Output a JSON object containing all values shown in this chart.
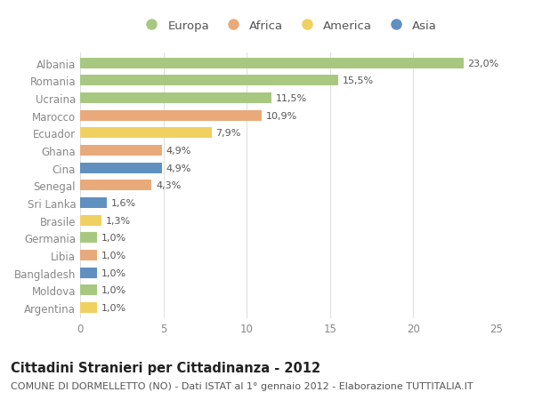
{
  "countries": [
    "Albania",
    "Romania",
    "Ucraina",
    "Marocco",
    "Ecuador",
    "Ghana",
    "Cina",
    "Senegal",
    "Sri Lanka",
    "Brasile",
    "Germania",
    "Libia",
    "Bangladesh",
    "Moldova",
    "Argentina"
  ],
  "values": [
    23.0,
    15.5,
    11.5,
    10.9,
    7.9,
    4.9,
    4.9,
    4.3,
    1.6,
    1.3,
    1.0,
    1.0,
    1.0,
    1.0,
    1.0
  ],
  "labels": [
    "23,0%",
    "15,5%",
    "11,5%",
    "10,9%",
    "7,9%",
    "4,9%",
    "4,9%",
    "4,3%",
    "1,6%",
    "1,3%",
    "1,0%",
    "1,0%",
    "1,0%",
    "1,0%",
    "1,0%"
  ],
  "categories": [
    "Europa",
    "Europa",
    "Europa",
    "Africa",
    "America",
    "Africa",
    "Asia",
    "Africa",
    "Asia",
    "America",
    "Europa",
    "Africa",
    "Asia",
    "Europa",
    "America"
  ],
  "colors": {
    "Europa": "#a8c882",
    "Africa": "#e8aa7a",
    "America": "#f0d060",
    "Asia": "#6090c0"
  },
  "legend_order": [
    "Europa",
    "Africa",
    "America",
    "Asia"
  ],
  "xlim": [
    0,
    25
  ],
  "xticks": [
    0,
    5,
    10,
    15,
    20,
    25
  ],
  "title": "Cittadini Stranieri per Cittadinanza - 2012",
  "subtitle": "COMUNE DI DORMELLETTO (NO) - Dati ISTAT al 1° gennaio 2012 - Elaborazione TUTTITALIA.IT",
  "background_color": "#ffffff",
  "grid_color": "#e0e0e0",
  "title_fontsize": 10.5,
  "subtitle_fontsize": 8,
  "label_fontsize": 8,
  "tick_fontsize": 8.5,
  "legend_fontsize": 9.5,
  "bar_height": 0.62
}
